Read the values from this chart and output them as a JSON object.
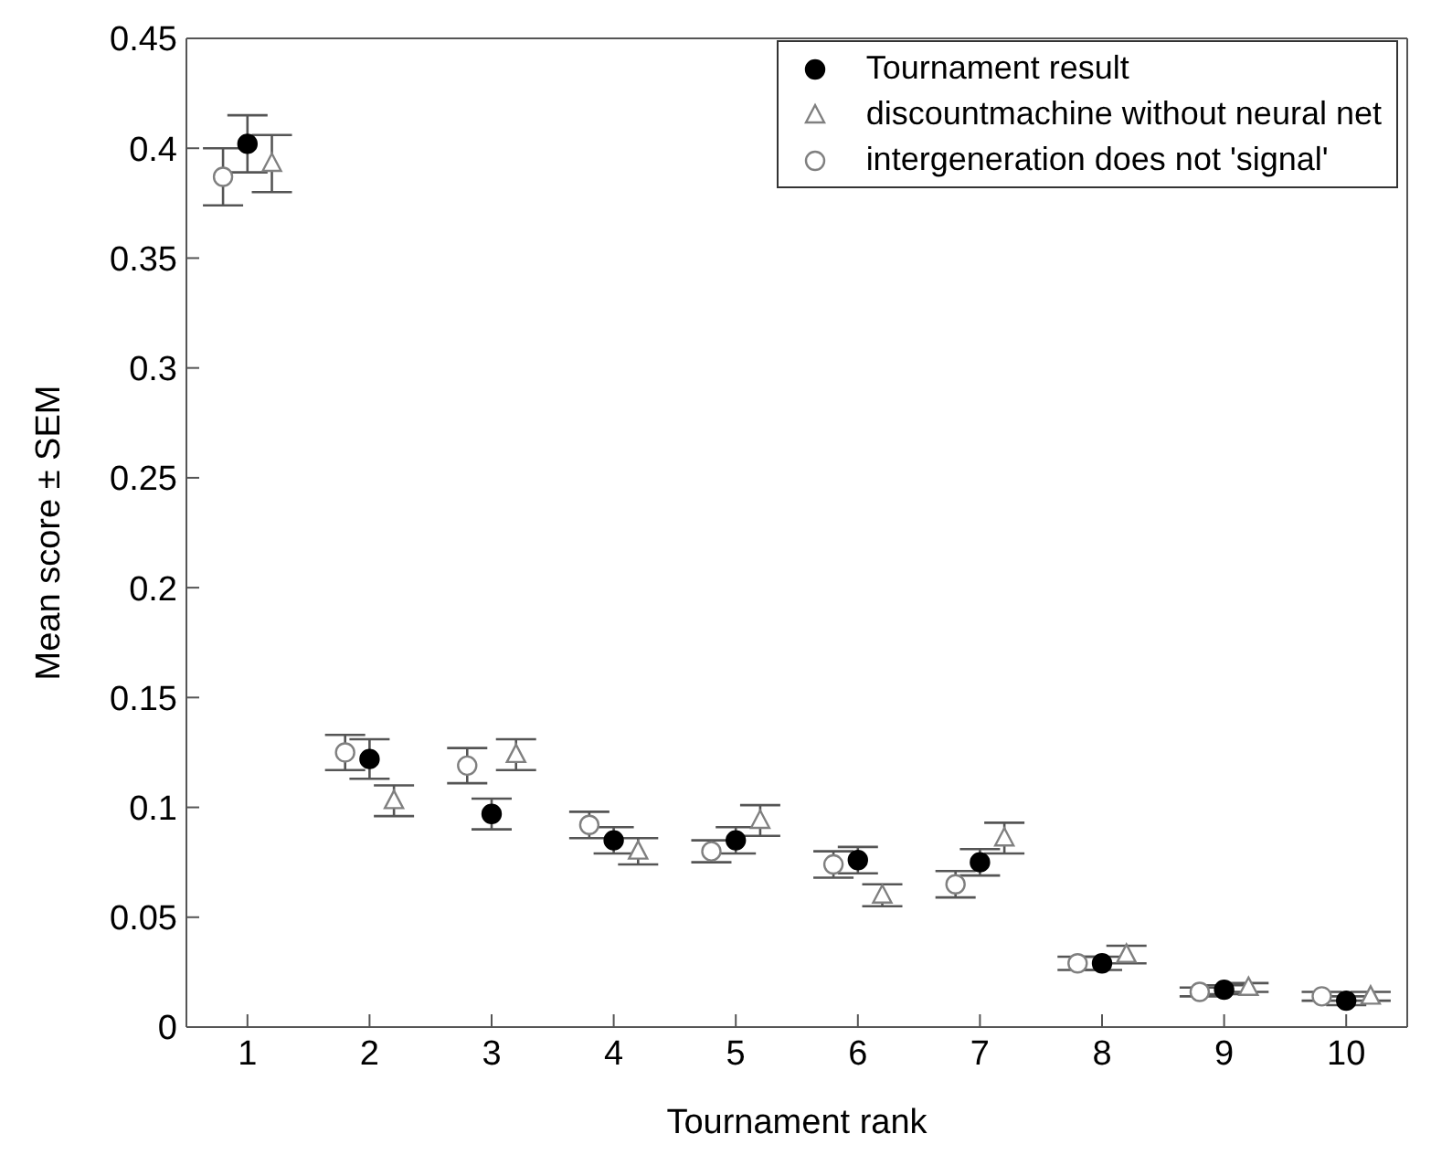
{
  "chart_data": {
    "type": "scatter",
    "xlabel": "Tournament rank",
    "ylabel": "Mean score ± SEM",
    "xlim": [
      0.5,
      10.5
    ],
    "xticks": [
      1,
      2,
      3,
      4,
      5,
      6,
      7,
      8,
      9,
      10
    ],
    "ylim": [
      0,
      0.45
    ],
    "yticks": [
      0,
      0.05,
      0.1,
      0.15,
      0.2,
      0.25,
      0.3,
      0.35,
      0.4,
      0.45
    ],
    "legend": "top right",
    "series": [
      {
        "name": "Tournament result",
        "color": "#000000",
        "marker": "circle",
        "x": [
          1,
          2,
          3,
          4,
          5,
          6,
          7,
          8,
          9,
          10
        ],
        "values": [
          0.402,
          0.122,
          0.097,
          0.085,
          0.085,
          0.076,
          0.075,
          0.029,
          0.017,
          0.012
        ],
        "errors": [
          0.013,
          0.009,
          0.007,
          0.006,
          0.006,
          0.006,
          0.006,
          0.003,
          0.002,
          0.002
        ]
      },
      {
        "name": "discountmachine without neural net",
        "color": "#808080",
        "marker": "triangle",
        "x": [
          1.2,
          2.2,
          3.2,
          4.2,
          5.2,
          6.2,
          7.2,
          8.2,
          9.2,
          10.2
        ],
        "values": [
          0.393,
          0.103,
          0.124,
          0.08,
          0.094,
          0.06,
          0.086,
          0.033,
          0.018,
          0.014
        ],
        "errors": [
          0.013,
          0.007,
          0.007,
          0.006,
          0.007,
          0.005,
          0.007,
          0.004,
          0.002,
          0.002
        ]
      },
      {
        "name": "intergeneration does not 'signal'",
        "color": "#808080",
        "marker": "circle",
        "x": [
          0.8,
          1.8,
          2.8,
          3.8,
          4.8,
          5.8,
          6.8,
          7.8,
          8.8,
          9.8
        ],
        "values": [
          0.387,
          0.125,
          0.119,
          0.092,
          0.08,
          0.074,
          0.065,
          0.029,
          0.016,
          0.014
        ],
        "errors": [
          0.013,
          0.008,
          0.008,
          0.006,
          0.005,
          0.006,
          0.006,
          0.003,
          0.002,
          0.002
        ]
      }
    ]
  }
}
